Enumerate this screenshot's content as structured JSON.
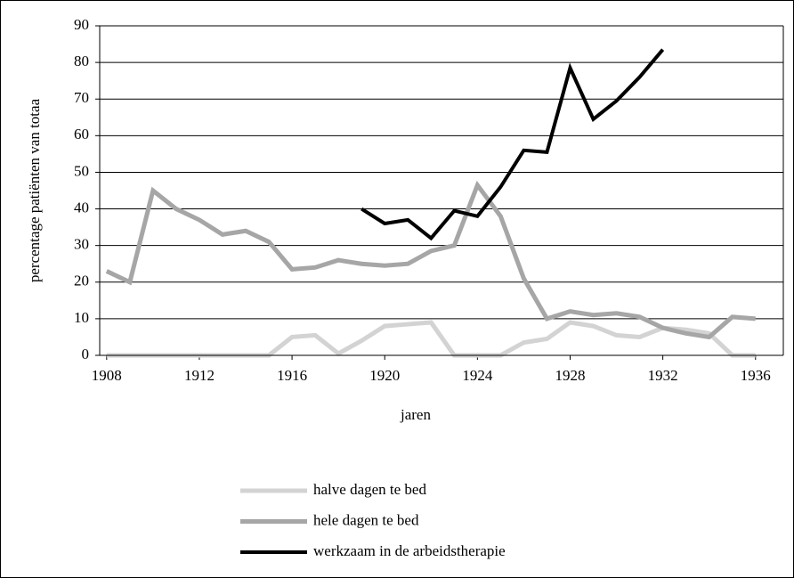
{
  "chart_data": {
    "type": "line",
    "y_label": "percentage patiënten van totaa",
    "x_label": "jaren",
    "x": [
      1908,
      1909,
      1910,
      1911,
      1912,
      1913,
      1914,
      1915,
      1916,
      1917,
      1918,
      1919,
      1920,
      1921,
      1922,
      1923,
      1924,
      1925,
      1926,
      1927,
      1928,
      1929,
      1930,
      1931,
      1932,
      1933,
      1934,
      1935,
      1936
    ],
    "series": [
      {
        "name": "halve dagen te bed",
        "color": "#d3d3d3",
        "values": [
          0,
          0,
          0,
          0,
          0,
          0,
          0,
          0,
          5,
          5.5,
          0.5,
          4,
          8,
          8.5,
          9,
          0,
          0,
          0,
          3.5,
          4.5,
          9,
          8,
          5.5,
          5,
          7.5,
          7,
          6,
          0,
          0
        ]
      },
      {
        "name": "hele dagen te bed",
        "color": "#a6a6a6",
        "values": [
          23,
          20,
          45,
          40,
          37,
          33,
          34,
          31,
          23.5,
          24,
          26,
          25,
          24.5,
          25,
          28.5,
          30,
          46.5,
          38,
          21,
          10,
          12,
          11,
          11.5,
          10.5,
          7.5,
          6,
          5,
          10.5,
          10
        ]
      },
      {
        "name": "werkzaam in de arbeidstherapie",
        "color": "#000000",
        "values": [
          null,
          null,
          null,
          null,
          null,
          null,
          null,
          null,
          null,
          null,
          null,
          40,
          36,
          37,
          32,
          39.5,
          38,
          46,
          56,
          55.5,
          78.5,
          64.5,
          69.5,
          76,
          83.5,
          null,
          null,
          null,
          null
        ]
      }
    ],
    "xlim": [
      1907.7,
      1937.2
    ],
    "xticks": [
      1908,
      1912,
      1916,
      1920,
      1924,
      1928,
      1932,
      1936
    ],
    "ylim": [
      0,
      90
    ],
    "yticks": [
      0,
      10,
      20,
      30,
      40,
      50,
      60,
      70,
      80,
      90
    ],
    "grid": true
  }
}
